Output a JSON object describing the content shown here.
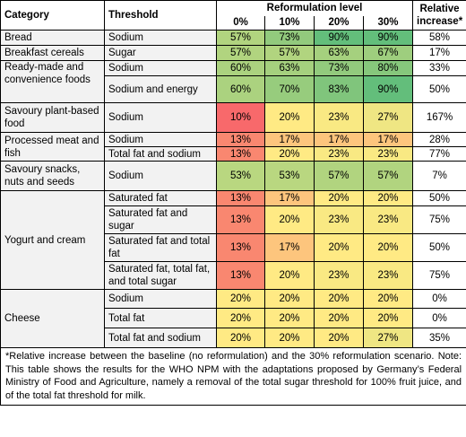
{
  "header": {
    "category": "Category",
    "threshold": "Threshold",
    "reformulation": "Reformulation level",
    "levels": [
      "0%",
      "10%",
      "20%",
      "30%"
    ],
    "relative": "Relative increase*"
  },
  "rows": [
    {
      "category": "Bread",
      "threshold": "Sodium",
      "values": [
        "57%",
        "73%",
        "90%",
        "90%"
      ],
      "relative": "58%"
    },
    {
      "category": "Breakfast cereals",
      "threshold": "Sugar",
      "values": [
        "57%",
        "57%",
        "63%",
        "67%"
      ],
      "relative": "17%"
    },
    {
      "category": "Ready-made and convenience foods",
      "threshold": "Sodium",
      "values": [
        "60%",
        "63%",
        "73%",
        "80%"
      ],
      "relative": "33%"
    },
    {
      "category": "",
      "threshold": "Sodium and energy",
      "values": [
        "60%",
        "70%",
        "83%",
        "90%"
      ],
      "relative": "50%"
    },
    {
      "category": "Savoury plant-based food",
      "threshold": "Sodium",
      "values": [
        "10%",
        "20%",
        "23%",
        "27%"
      ],
      "relative": "167%"
    },
    {
      "category": "Processed meat and fish",
      "threshold": "Sodium",
      "values": [
        "13%",
        "17%",
        "17%",
        "17%"
      ],
      "relative": "28%"
    },
    {
      "category": "",
      "threshold": "Total fat and sodium",
      "values": [
        "13%",
        "20%",
        "23%",
        "23%"
      ],
      "relative": "77%"
    },
    {
      "category": "Savoury snacks, nuts and seeds",
      "threshold": "Sodium",
      "values": [
        "53%",
        "53%",
        "57%",
        "57%"
      ],
      "relative": "7%"
    },
    {
      "category": "Yogurt and cream",
      "threshold": "Saturated fat",
      "values": [
        "13%",
        "17%",
        "20%",
        "20%"
      ],
      "relative": "50%"
    },
    {
      "category": "",
      "threshold": "Saturated fat and sugar",
      "values": [
        "13%",
        "20%",
        "23%",
        "23%"
      ],
      "relative": "75%"
    },
    {
      "category": "",
      "threshold": "Saturated fat and total fat",
      "values": [
        "13%",
        "17%",
        "20%",
        "20%"
      ],
      "relative": "50%"
    },
    {
      "category": "",
      "threshold": "Saturated fat, total fat, and total sugar",
      "values": [
        "13%",
        "20%",
        "23%",
        "23%"
      ],
      "relative": "75%"
    },
    {
      "category": "Cheese",
      "threshold": "Sodium",
      "values": [
        "20%",
        "20%",
        "20%",
        "20%"
      ],
      "relative": "0%"
    },
    {
      "category": "",
      "threshold": "Total fat",
      "values": [
        "20%",
        "20%",
        "20%",
        "20%"
      ],
      "relative": "0%"
    },
    {
      "category": "",
      "threshold": "Total fat and sodium",
      "values": [
        "20%",
        "20%",
        "20%",
        "27%"
      ],
      "relative": "35%"
    }
  ],
  "footnote": "*Relative increase between the baseline (no reformulation) and the 30% reformulation scenario. Note: This table shows the results for the WHO NPM with the adaptations proposed by Germany’s Federal Ministry of Food and Agriculture, namely a removal of the total sugar threshold for 100% fruit juice, and of the total fat threshold for milk.",
  "cell_colors": {
    "10%": "#f8696b",
    "13%": "#f98770",
    "17%": "#fdc57d",
    "20%": "#ffea84",
    "23%": "#f9e983",
    "27%": "#efe683",
    "53%": "#b9d780",
    "57%": "#b1d47f",
    "60%": "#abd27f",
    "63%": "#a5d07e",
    "67%": "#9ece7e",
    "70%": "#97cc7d",
    "73%": "#92ca7d",
    "80%": "#86c77c",
    "83%": "#80c57c",
    "90%": "#63be7b"
  }
}
